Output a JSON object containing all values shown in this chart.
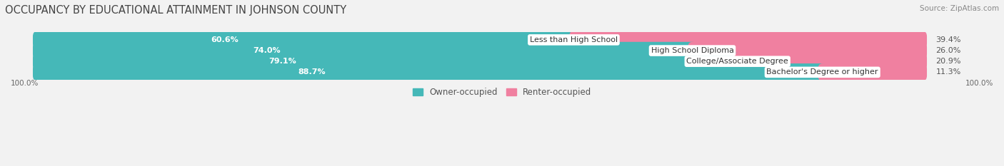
{
  "title": "OCCUPANCY BY EDUCATIONAL ATTAINMENT IN JOHNSON COUNTY",
  "source": "Source: ZipAtlas.com",
  "categories": [
    "Less than High School",
    "High School Diploma",
    "College/Associate Degree",
    "Bachelor's Degree or higher"
  ],
  "owner_values": [
    60.6,
    74.0,
    79.1,
    88.7
  ],
  "renter_values": [
    39.4,
    26.0,
    20.9,
    11.3
  ],
  "owner_color": "#45b8b8",
  "renter_color": "#f080a0",
  "bg_color": "#f2f2f2",
  "bar_bg_color": "#e4e4ec",
  "bar_bg_left_color": "#eaeaee",
  "title_fontsize": 10.5,
  "source_fontsize": 7.5,
  "label_fontsize": 8,
  "value_fontsize": 8,
  "legend_fontsize": 8.5,
  "axis_label_fontsize": 7.5,
  "x_left_label": "100.0%",
  "x_right_label": "100.0%",
  "bar_height": 0.62,
  "total_width": 100.0
}
